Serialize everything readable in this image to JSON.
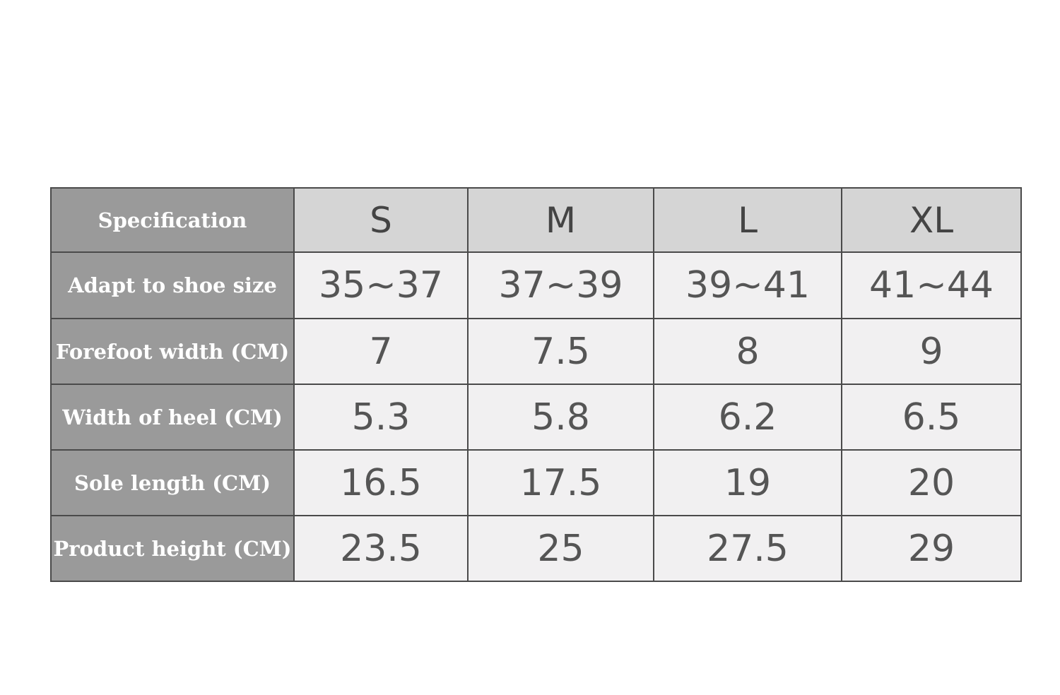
{
  "table": {
    "header": [
      "Specification",
      "S",
      "M",
      "L",
      "XL"
    ],
    "rows": [
      [
        "Adapt to shoe size",
        "35~37",
        "37~39",
        "39~41",
        "41~44"
      ],
      [
        "Forefoot width (CM)",
        7,
        7.5,
        8,
        9
      ],
      [
        "Width of heel (CM)",
        5.3,
        5.8,
        6.2,
        6.5
      ],
      [
        "Sole length (CM)",
        16.5,
        17.5,
        19,
        20
      ],
      [
        "Product height (CM)",
        23.5,
        25,
        27.5,
        29
      ]
    ]
  }
}
